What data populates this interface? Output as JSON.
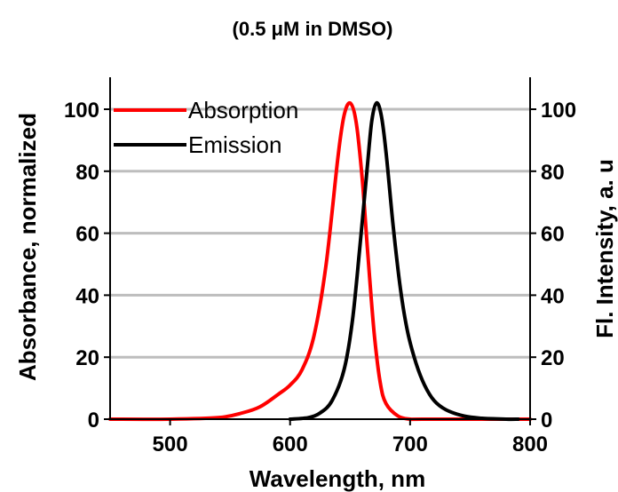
{
  "chart_data": {
    "type": "line",
    "title": "(0.5 μM in DMSO)",
    "xlabel": "Wavelength, nm",
    "ylabel_left": "Absorbance, normalized",
    "ylabel_right": "Fl. Intensity, a. u",
    "xlim": [
      450,
      800
    ],
    "ylim": [
      0,
      110
    ],
    "xticks": [
      500,
      600,
      700,
      800
    ],
    "yticks": [
      0,
      20,
      40,
      60,
      80,
      100
    ],
    "grid": "horizontal",
    "legend_position": "top-left",
    "series": [
      {
        "name": "Absorption",
        "color": "#ff0000",
        "x": [
          450,
          500,
          540,
          560,
          575,
          590,
          600,
          610,
          620,
          630,
          640,
          645,
          650,
          655,
          660,
          665,
          670,
          675,
          680,
          690,
          700,
          710,
          800
        ],
        "y": [
          0,
          0,
          0.5,
          2,
          4,
          8,
          11,
          16,
          27,
          50,
          85,
          98,
          102,
          96,
          78,
          52,
          28,
          12,
          5,
          1,
          0,
          0,
          0
        ]
      },
      {
        "name": "Emission",
        "color": "#000000",
        "x": [
          600,
          615,
          625,
          635,
          645,
          652,
          658,
          664,
          668,
          672,
          676,
          680,
          686,
          692,
          698,
          705,
          712,
          720,
          730,
          745,
          760,
          780,
          790
        ],
        "y": [
          0,
          0.5,
          2,
          6,
          16,
          32,
          55,
          80,
          96,
          102,
          98,
          86,
          62,
          42,
          28,
          18,
          11,
          6,
          3,
          1,
          0.3,
          0,
          0
        ]
      }
    ]
  }
}
